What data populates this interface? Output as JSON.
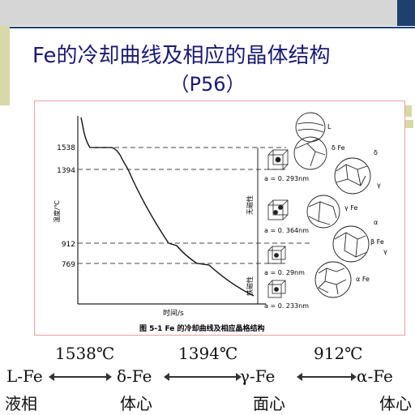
{
  "title": "Fe的冷却曲线及相应的晶体结构",
  "subtitle": "（P56）",
  "figure": {
    "caption": "图 5-1   Fe 的冷却曲线及相应晶格结构",
    "y_axis_label": "温度/℃",
    "x_axis_label": "时间/s",
    "temperatures": [
      "1538",
      "1394",
      "912",
      "769"
    ],
    "lattice_params": [
      "a = 0. 293nm",
      "a = 0. 364nm",
      "a = 0. 29nm",
      "a = 0. 233nm"
    ],
    "region_labels": [
      "无磁性",
      "铁磁性"
    ],
    "phase_labels": [
      "L",
      "δ Fe",
      "δ",
      "γ",
      "γ Fe",
      "α",
      "β Fe",
      "γ",
      "α Fe"
    ]
  },
  "transitions": {
    "phases": [
      "L-Fe",
      "δ-Fe",
      "γ-Fe",
      "α-Fe"
    ],
    "structures": [
      "液相",
      "体心",
      "面心",
      "体心"
    ],
    "temps": [
      "1538℃",
      "1394℃",
      "912℃"
    ]
  },
  "colors": {
    "title": "#1a1a6e",
    "accent_navy": "#1f3f6f",
    "accent_olive": "#d8d8a8"
  }
}
